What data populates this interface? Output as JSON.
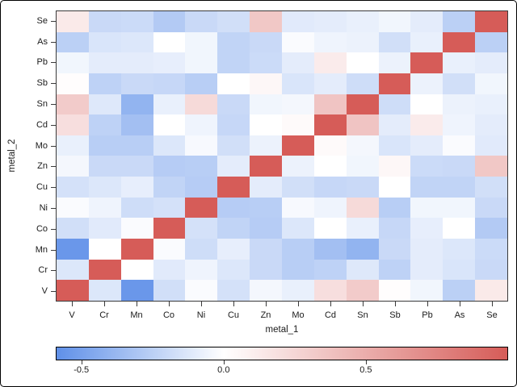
{
  "chart_data": {
    "type": "heatmap",
    "xlabel": "metal_1",
    "ylabel": "metal_2",
    "x_categories": [
      "V",
      "Cr",
      "Mn",
      "Co",
      "Ni",
      "Cu",
      "Zn",
      "Mo",
      "Cd",
      "Sn",
      "Sb",
      "Pb",
      "As",
      "Se"
    ],
    "y_categories_top_to_bottom": [
      "Se",
      "As",
      "Pb",
      "Sb",
      "Sn",
      "Cd",
      "Mo",
      "Zn",
      "Cu",
      "Ni",
      "Co",
      "Mn",
      "Cr",
      "V"
    ],
    "matrix_rows_top_to_bottom": [
      [
        0.13,
        -0.2,
        -0.19,
        -0.28,
        -0.2,
        -0.17,
        0.34,
        -0.11,
        -0.1,
        -0.08,
        -0.05,
        -0.1,
        -0.25,
        1.0
      ],
      [
        -0.25,
        -0.14,
        -0.13,
        0.0,
        -0.05,
        -0.23,
        -0.2,
        -0.02,
        -0.06,
        -0.07,
        -0.17,
        -0.08,
        1.0,
        -0.25
      ],
      [
        -0.05,
        -0.1,
        -0.1,
        -0.09,
        -0.05,
        -0.23,
        -0.19,
        -0.1,
        0.12,
        0.0,
        -0.07,
        1.0,
        -0.08,
        -0.1
      ],
      [
        0.01,
        -0.24,
        -0.2,
        -0.21,
        -0.26,
        0.0,
        0.05,
        -0.14,
        -0.1,
        -0.18,
        1.0,
        -0.07,
        -0.17,
        -0.05
      ],
      [
        0.32,
        -0.12,
        -0.4,
        -0.08,
        0.23,
        -0.2,
        -0.05,
        -0.04,
        0.36,
        1.0,
        -0.18,
        0.0,
        -0.07,
        -0.08
      ],
      [
        0.2,
        -0.24,
        -0.34,
        0.0,
        -0.06,
        -0.21,
        0.0,
        0.03,
        1.0,
        0.36,
        -0.1,
        0.12,
        -0.06,
        -0.1
      ],
      [
        -0.08,
        -0.26,
        -0.26,
        -0.13,
        -0.03,
        -0.17,
        -0.07,
        1.0,
        0.03,
        -0.04,
        -0.14,
        -0.1,
        -0.02,
        -0.11
      ],
      [
        -0.04,
        -0.2,
        -0.2,
        -0.27,
        -0.26,
        -0.1,
        1.0,
        -0.07,
        0.0,
        -0.05,
        0.05,
        -0.19,
        -0.2,
        0.34
      ],
      [
        -0.16,
        -0.13,
        -0.09,
        -0.23,
        -0.27,
        1.0,
        -0.1,
        -0.17,
        -0.21,
        -0.2,
        0.0,
        -0.23,
        -0.23,
        -0.17
      ],
      [
        -0.02,
        -0.06,
        -0.18,
        -0.16,
        1.0,
        -0.27,
        -0.26,
        -0.03,
        -0.06,
        0.23,
        -0.26,
        -0.05,
        -0.05,
        -0.2
      ],
      [
        -0.17,
        -0.11,
        -0.02,
        1.0,
        -0.16,
        -0.23,
        -0.27,
        -0.13,
        0.0,
        -0.08,
        -0.21,
        -0.09,
        0.0,
        -0.28
      ],
      [
        -0.55,
        0.0,
        1.0,
        -0.02,
        -0.18,
        -0.09,
        -0.2,
        -0.26,
        -0.34,
        -0.4,
        -0.2,
        -0.1,
        -0.13,
        -0.19
      ],
      [
        -0.13,
        1.0,
        0.0,
        -0.11,
        -0.06,
        -0.13,
        -0.2,
        -0.26,
        -0.24,
        -0.12,
        -0.24,
        -0.1,
        -0.14,
        -0.2
      ],
      [
        1.0,
        -0.13,
        -0.55,
        -0.17,
        -0.02,
        -0.16,
        -0.04,
        -0.08,
        0.2,
        0.32,
        0.01,
        -0.05,
        -0.25,
        0.13
      ]
    ],
    "colorbar": {
      "domain": [
        -0.59,
        1.0
      ],
      "ticks": [
        -0.5,
        0.0,
        0.5
      ],
      "tick_labels": [
        "-0.5",
        "0.0",
        "0.5"
      ],
      "color_negative_end": "#5c8ee8",
      "color_zero": "#ffffff",
      "color_positive_end": "#d65c58"
    },
    "legend_position": "bottom",
    "grid": false
  }
}
